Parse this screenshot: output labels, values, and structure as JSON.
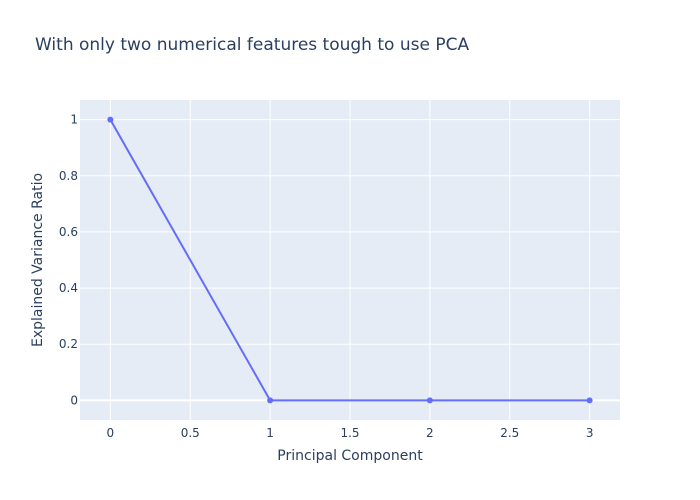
{
  "chart_data": {
    "type": "line",
    "title": "With only two numerical features tough to use PCA",
    "xlabel": "Principal Component",
    "ylabel": "Explained Variance Ratio",
    "x": [
      0,
      1,
      2,
      3
    ],
    "series": [
      {
        "values": [
          0.9999,
          0.0001,
          0.0,
          0.0
        ]
      }
    ],
    "xlim": [
      -0.19,
      3.19
    ],
    "ylim": [
      -0.07,
      1.07
    ],
    "xticks": [
      0,
      0.5,
      1,
      1.5,
      2,
      2.5,
      3
    ],
    "xtick_labels": [
      "0",
      "0.5",
      "1",
      "1.5",
      "2",
      "2.5",
      "3"
    ],
    "yticks": [
      0,
      0.2,
      0.4,
      0.6,
      0.8,
      1
    ],
    "ytick_labels": [
      "0",
      "0.2",
      "0.4",
      "0.6",
      "0.8",
      "1"
    ],
    "grid": true,
    "line_color": "#636efa",
    "plot_bg_color": "#e5ecf6",
    "grid_color": "#ffffff",
    "text_color": "#2a3f5f",
    "marker": "circle"
  }
}
